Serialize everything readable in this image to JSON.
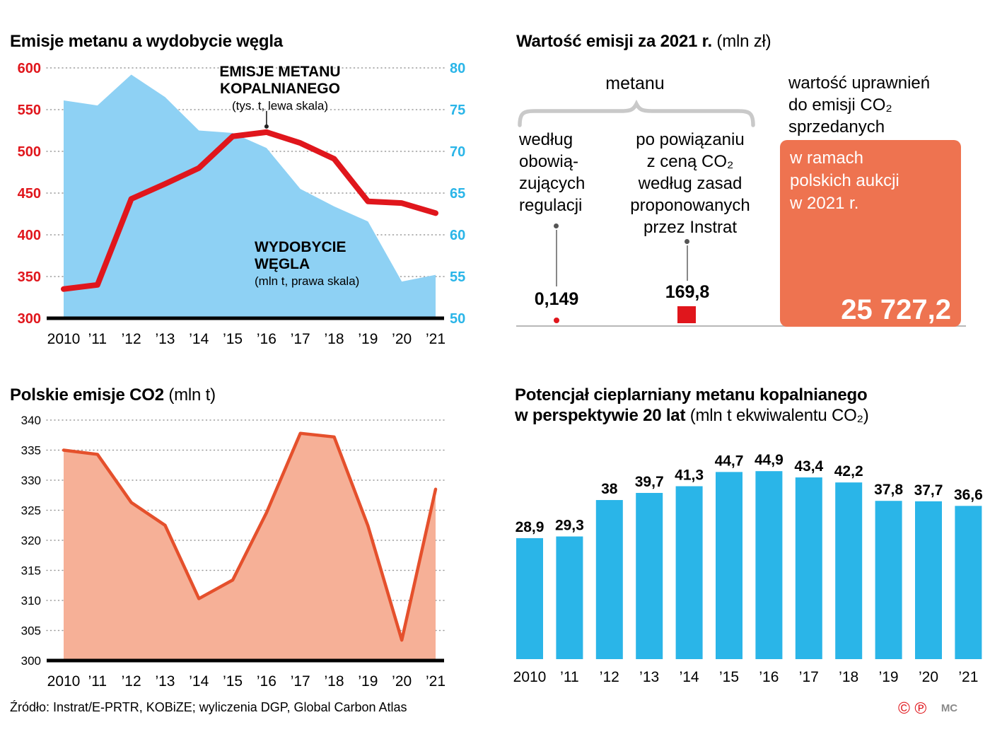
{
  "colors": {
    "red": "#e0161c",
    "cyan": "#2ab5e8",
    "light_blue": "#8ed1f4",
    "co2_line": "#e5502c",
    "co2_fill": "#f6b097",
    "box_orange": "#ee7350",
    "grid": "#9a9a9a",
    "brace_gray": "#c9c9c9"
  },
  "chart_data": [
    {
      "id": "methane-vs-coal",
      "type": "line",
      "title": "Emisje metanu a wydobycie węgla",
      "categories": [
        "2010",
        "’11",
        "’12",
        "’13",
        "’14",
        "’15",
        "’16",
        "’17",
        "’18",
        "’19",
        "’20",
        "’21"
      ],
      "left_axis": {
        "min": 300,
        "max": 600,
        "step": 50,
        "ticks": [
          600,
          550,
          500,
          450,
          400,
          350,
          300
        ],
        "color": "#e0161c"
      },
      "right_axis": {
        "min": 50,
        "max": 80,
        "step": 5,
        "ticks": [
          80,
          75,
          70,
          65,
          60,
          55,
          50
        ],
        "color": "#2ab5e8"
      },
      "grid": "dotted",
      "series": [
        {
          "name": "EMISJE METANU KOPALNIANEGO",
          "unit": "tys. t",
          "axis": "left",
          "style": "line",
          "values": [
            335,
            340,
            443,
            461,
            480,
            518,
            523,
            510,
            491,
            440,
            438,
            426
          ]
        },
        {
          "name": "WYDOBYCIE WĘGLA",
          "unit": "mln t",
          "axis": "right",
          "style": "area",
          "values": [
            76.1,
            75.5,
            79.2,
            76.5,
            72.5,
            72.2,
            70.4,
            65.5,
            63.4,
            61.6,
            54.4,
            55.2
          ]
        }
      ],
      "annotations": {
        "methane": {
          "line1": "EMISJE METANU",
          "line2": "KOPALNIANEGO",
          "sub": "(tys. t, lewa skala)",
          "anchor_index": 6
        },
        "coal": {
          "line1": "WYDOBYCIE",
          "line2": "WĘGLA",
          "sub": "(mln t, prawa skala)"
        }
      }
    },
    {
      "id": "emission-value-2021",
      "type": "comparison",
      "title": "Wartość emisji za 2021 r.",
      "unit": "mln zł",
      "items": [
        {
          "label": "metanu według obowiązujących regulacji",
          "value": 0.149,
          "value_label": "0,149"
        },
        {
          "label": "metanu po powiązaniu z ceną CO₂ według zasad proponowanych przez Instrat",
          "value": 169.8,
          "value_label": "169,8"
        },
        {
          "label": "wartość uprawnień do emisji CO₂ sprzedanych w ramach polskich aukcji w 2021 r.",
          "value": 25727.2,
          "value_label": "25 727,2"
        }
      ]
    },
    {
      "id": "polish-co2-emissions",
      "type": "area",
      "title": "Polskie emisje CO2",
      "title_suffix": " (mln t)",
      "categories": [
        "2010",
        "’11",
        "’12",
        "’13",
        "’14",
        "’15",
        "’16",
        "’17",
        "’18",
        "’19",
        "’20",
        "’21"
      ],
      "y_axis": {
        "min": 300,
        "max": 340,
        "step": 5,
        "ticks": [
          340,
          335,
          330,
          325,
          320,
          315,
          310,
          305,
          300
        ]
      },
      "grid": "dotted",
      "values": [
        335,
        334.3,
        326.3,
        322.5,
        310.3,
        313.4,
        324.6,
        337.8,
        337.2,
        322.4,
        303.4,
        328.5
      ]
    },
    {
      "id": "methane-gwp-20y",
      "type": "bar",
      "title_line1": "Potencjał cieplarniany metanu kopalnianego",
      "title_line2": "w perspektywie 20 lat",
      "title_line2_suffix": " (mln t ekwiwalentu CO₂)",
      "categories": [
        "2010",
        "’11",
        "’12",
        "’13",
        "’14",
        "’15",
        "’16",
        "’17",
        "’18",
        "’19",
        "’20",
        "’21"
      ],
      "values": [
        28.9,
        29.3,
        38,
        39.7,
        41.3,
        44.7,
        44.9,
        43.4,
        42.2,
        37.8,
        37.7,
        36.6
      ],
      "value_labels": [
        "28,9",
        "29,3",
        "38",
        "39,7",
        "41,3",
        "44,7",
        "44,9",
        "43,4",
        "42,2",
        "37,8",
        "37,7",
        "36,6"
      ],
      "ylim": [
        0,
        50
      ]
    }
  ],
  "panel2": {
    "title": "Wartość emisji za 2021 r.",
    "title_suffix": " (mln zł)",
    "group_label": "metanu",
    "colA_lines": [
      "według",
      "obowią-",
      "zujących",
      "regulacji"
    ],
    "colA_value": "0,149",
    "colB_lines": [
      "po powiązaniu",
      "z ceną CO₂",
      "według zasad",
      "proponowanych",
      "przez Instrat"
    ],
    "colB_value": "169,8",
    "right_lines": [
      "wartość uprawnień",
      "do emisji CO₂",
      "sprzedanych"
    ],
    "box_lines": [
      "w ramach",
      "polskich aukcji",
      "w 2021 r."
    ],
    "box_value": "25 727,2"
  },
  "footer": {
    "source": "Źródło: Instrat/E-PRTR, KOBiZE; wyliczenia DGP, Global Carbon Atlas",
    "mark_c": "©",
    "mark_p": "℗",
    "initials": "MC"
  }
}
